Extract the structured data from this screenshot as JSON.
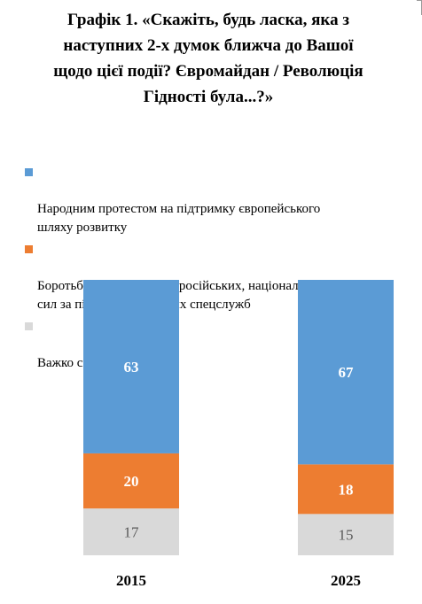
{
  "title": "Графік 1. «Скажіть, будь ласка, яка з\nнаступних 2-х думок ближча до Вашої\nщодо цієї події? Євромайдан / Революція\nГідності була...?»",
  "chart_data": {
    "type": "bar",
    "stacked": true,
    "categories": [
      "2015",
      "2025"
    ],
    "series": [
      {
        "name": "Народним протестом на підтримку європейського\nшляху розвитку",
        "values": [
          63,
          67
        ],
        "color": "#5B9BD5",
        "label_color": "#ffffff"
      },
      {
        "name": "Боротьбою за владу антиросійських, націоналісти\nсил за підтримки західних спецслужб",
        "values": [
          20,
          18
        ],
        "color": "#ED7D31",
        "label_color": "#ffffff"
      },
      {
        "name": "Важко сказати",
        "values": [
          17,
          15
        ],
        "color": "#D9D9D9",
        "label_color": "#595959"
      }
    ],
    "ylim": [
      0,
      100
    ],
    "legend_position": "top",
    "grid": false
  }
}
